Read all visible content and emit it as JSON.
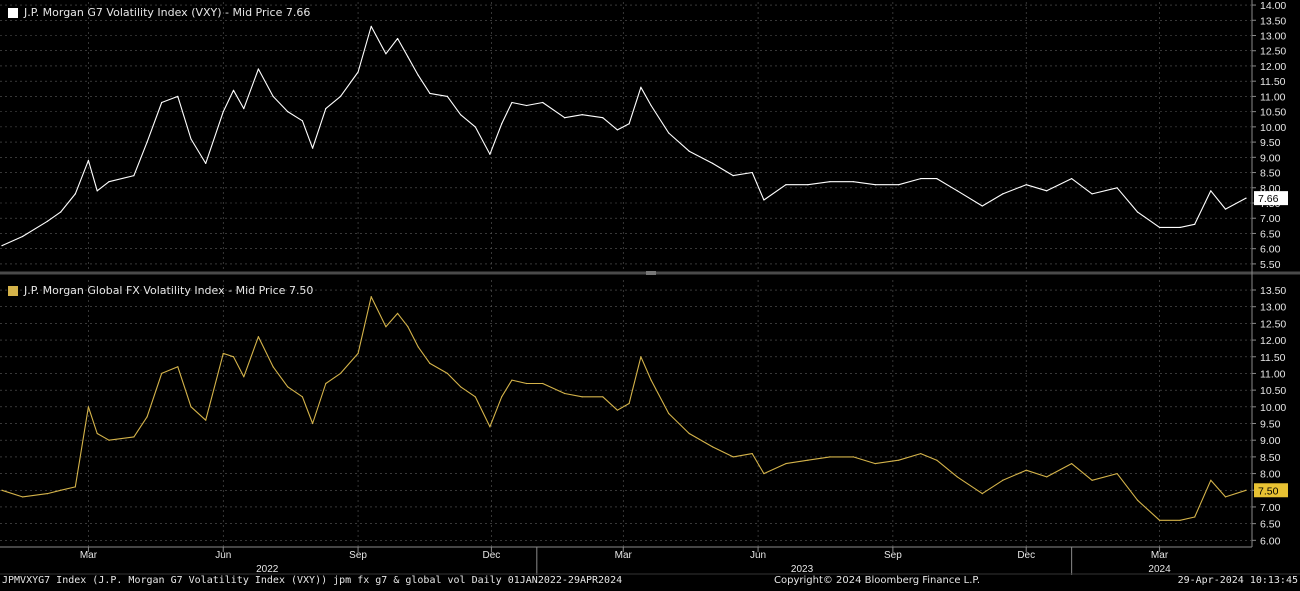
{
  "chart_data": [
    {
      "type": "line",
      "title": "J.P. Morgan G7 Volatility Index (VXY) - Mid Price 7.66",
      "last_value_label": "7.66",
      "last_value": 7.66,
      "ylim": [
        5.3,
        14.1
      ],
      "yticks": [
        "5.50",
        "6.00",
        "6.50",
        "7.00",
        "7.50",
        "8.00",
        "8.50",
        "9.00",
        "9.50",
        "10.00",
        "10.50",
        "11.00",
        "11.50",
        "12.00",
        "12.50",
        "13.00",
        "13.50",
        "14.00"
      ],
      "grid": true,
      "color": "#ffffff",
      "x": [
        "2022-01-01",
        "2022-01-15",
        "2022-02-01",
        "2022-02-10",
        "2022-02-20",
        "2022-03-01",
        "2022-03-07",
        "2022-03-15",
        "2022-04-01",
        "2022-04-10",
        "2022-04-20",
        "2022-05-01",
        "2022-05-10",
        "2022-05-20",
        "2022-06-01",
        "2022-06-08",
        "2022-06-15",
        "2022-06-25",
        "2022-07-05",
        "2022-07-15",
        "2022-07-25",
        "2022-08-01",
        "2022-08-10",
        "2022-08-20",
        "2022-09-01",
        "2022-09-10",
        "2022-09-20",
        "2022-09-28",
        "2022-10-05",
        "2022-10-12",
        "2022-10-20",
        "2022-11-01",
        "2022-11-10",
        "2022-11-20",
        "2022-11-30",
        "2022-12-08",
        "2022-12-15",
        "2022-12-25",
        "2023-01-05",
        "2023-01-20",
        "2023-02-01",
        "2023-02-15",
        "2023-02-25",
        "2023-03-05",
        "2023-03-13",
        "2023-03-20",
        "2023-04-01",
        "2023-04-15",
        "2023-05-01",
        "2023-05-15",
        "2023-05-28",
        "2023-06-05",
        "2023-06-20",
        "2023-07-05",
        "2023-07-20",
        "2023-08-05",
        "2023-08-20",
        "2023-09-05",
        "2023-09-20",
        "2023-10-01",
        "2023-10-15",
        "2023-11-01",
        "2023-11-15",
        "2023-12-01",
        "2023-12-15",
        "2024-01-01",
        "2024-01-15",
        "2024-02-01",
        "2024-02-15",
        "2024-03-01",
        "2024-03-15",
        "2024-03-25",
        "2024-04-05",
        "2024-04-15",
        "2024-04-29"
      ],
      "values": [
        6.1,
        6.4,
        6.9,
        7.2,
        7.8,
        8.9,
        7.9,
        8.2,
        8.4,
        9.5,
        10.8,
        11.0,
        9.6,
        8.8,
        10.5,
        11.2,
        10.6,
        11.9,
        11.0,
        10.5,
        10.2,
        9.3,
        10.6,
        11.0,
        11.8,
        13.3,
        12.4,
        12.9,
        12.3,
        11.7,
        11.1,
        11.0,
        10.4,
        10.0,
        9.1,
        10.1,
        10.8,
        10.7,
        10.8,
        10.3,
        10.4,
        10.3,
        9.9,
        10.1,
        11.3,
        10.7,
        9.8,
        9.2,
        8.8,
        8.4,
        8.5,
        7.6,
        8.1,
        8.1,
        8.2,
        8.2,
        8.1,
        8.1,
        8.3,
        8.3,
        7.9,
        7.4,
        7.8,
        8.1,
        7.9,
        8.3,
        7.8,
        8.0,
        7.2,
        6.7,
        6.7,
        6.8,
        7.9,
        7.3,
        7.66
      ]
    },
    {
      "type": "line",
      "title": "J.P. Morgan Global FX Volatility Index - Mid Price 7.50",
      "last_value_label": "7.50",
      "last_value": 7.5,
      "ylim": [
        5.8,
        13.8
      ],
      "yticks": [
        "6.00",
        "6.50",
        "7.00",
        "7.50",
        "8.00",
        "8.50",
        "9.00",
        "9.50",
        "10.00",
        "10.50",
        "11.00",
        "11.50",
        "12.00",
        "12.50",
        "13.00",
        "13.50"
      ],
      "grid": true,
      "color": "#d4b34a",
      "x": [
        "2022-01-01",
        "2022-01-15",
        "2022-02-01",
        "2022-02-10",
        "2022-02-20",
        "2022-03-01",
        "2022-03-07",
        "2022-03-15",
        "2022-04-01",
        "2022-04-10",
        "2022-04-20",
        "2022-05-01",
        "2022-05-10",
        "2022-05-20",
        "2022-06-01",
        "2022-06-08",
        "2022-06-15",
        "2022-06-25",
        "2022-07-05",
        "2022-07-15",
        "2022-07-25",
        "2022-08-01",
        "2022-08-10",
        "2022-08-20",
        "2022-09-01",
        "2022-09-10",
        "2022-09-20",
        "2022-09-28",
        "2022-10-05",
        "2022-10-12",
        "2022-10-20",
        "2022-11-01",
        "2022-11-10",
        "2022-11-20",
        "2022-11-30",
        "2022-12-08",
        "2022-12-15",
        "2022-12-25",
        "2023-01-05",
        "2023-01-20",
        "2023-02-01",
        "2023-02-15",
        "2023-02-25",
        "2023-03-05",
        "2023-03-13",
        "2023-03-20",
        "2023-04-01",
        "2023-04-15",
        "2023-05-01",
        "2023-05-15",
        "2023-05-28",
        "2023-06-05",
        "2023-06-20",
        "2023-07-05",
        "2023-07-20",
        "2023-08-05",
        "2023-08-20",
        "2023-09-05",
        "2023-09-20",
        "2023-10-01",
        "2023-10-15",
        "2023-11-01",
        "2023-11-15",
        "2023-12-01",
        "2023-12-15",
        "2024-01-01",
        "2024-01-15",
        "2024-02-01",
        "2024-02-15",
        "2024-03-01",
        "2024-03-15",
        "2024-03-25",
        "2024-04-05",
        "2024-04-15",
        "2024-04-29"
      ],
      "values": [
        7.5,
        7.3,
        7.4,
        7.5,
        7.6,
        10.0,
        9.2,
        9.0,
        9.1,
        9.7,
        11.0,
        11.2,
        10.0,
        9.6,
        11.6,
        11.5,
        10.9,
        12.1,
        11.2,
        10.6,
        10.3,
        9.5,
        10.7,
        11.0,
        11.6,
        13.3,
        12.4,
        12.8,
        12.4,
        11.8,
        11.3,
        11.0,
        10.6,
        10.3,
        9.4,
        10.3,
        10.8,
        10.7,
        10.7,
        10.4,
        10.3,
        10.3,
        9.9,
        10.1,
        11.5,
        10.8,
        9.8,
        9.2,
        8.8,
        8.5,
        8.6,
        8.0,
        8.3,
        8.4,
        8.5,
        8.5,
        8.3,
        8.4,
        8.6,
        8.4,
        7.9,
        7.4,
        7.8,
        8.1,
        7.9,
        8.3,
        7.8,
        8.0,
        7.2,
        6.6,
        6.6,
        6.7,
        7.8,
        7.3,
        7.5
      ]
    }
  ],
  "x_axis": {
    "month_labels": [
      {
        "label": "Mar",
        "date": "2022-03-01"
      },
      {
        "label": "Jun",
        "date": "2022-06-01"
      },
      {
        "label": "Sep",
        "date": "2022-09-01"
      },
      {
        "label": "Dec",
        "date": "2022-12-01"
      },
      {
        "label": "Mar",
        "date": "2023-03-01"
      },
      {
        "label": "Jun",
        "date": "2023-06-01"
      },
      {
        "label": "Sep",
        "date": "2023-09-01"
      },
      {
        "label": "Dec",
        "date": "2023-12-01"
      },
      {
        "label": "Mar",
        "date": "2024-03-01"
      }
    ],
    "year_labels": [
      {
        "label": "2022",
        "date": "2022-07-01"
      },
      {
        "label": "2023",
        "date": "2023-07-01"
      },
      {
        "label": "2024",
        "date": "2024-03-01"
      }
    ],
    "year_boundaries": [
      "2023-01-01",
      "2024-01-01"
    ],
    "range": [
      "2022-01-01",
      "2024-04-29"
    ]
  },
  "footer": {
    "left": "JPMVXYG7 Index (J.P. Morgan G7 Volatility Index (VXY)) jpm fx g7 & global vol  Daily 01JAN2022-29APR2024",
    "center": "Copyright© 2024 Bloomberg Finance L.P.",
    "right": "29-Apr-2024 10:13:45"
  }
}
